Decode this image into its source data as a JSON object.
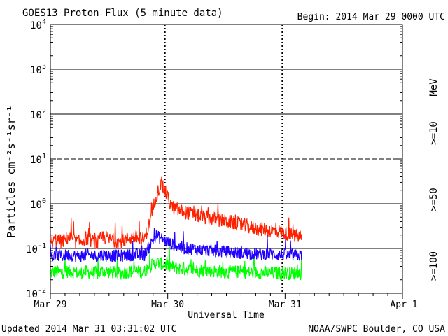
{
  "chart_data": {
    "type": "line",
    "title": "GOES13 Proton Flux (5 minute data)",
    "begin_label": "Begin: 2014 Mar 29 0000 UTC",
    "xlabel": "Universal Time",
    "ylabel": "Particles cm⁻²s⁻¹sr⁻¹",
    "y_scale": "log",
    "ylim": [
      0.01,
      10000
    ],
    "xlim_days": [
      0,
      3
    ],
    "yticks": [
      {
        "value": 0.01,
        "base": "10",
        "exp": "-2"
      },
      {
        "value": 0.1,
        "base": "10",
        "exp": "-1"
      },
      {
        "value": 1,
        "base": "10",
        "exp": "0"
      },
      {
        "value": 10,
        "base": "10",
        "exp": "1"
      },
      {
        "value": 100,
        "base": "10",
        "exp": "2"
      },
      {
        "value": 1000,
        "base": "10",
        "exp": "3"
      },
      {
        "value": 10000,
        "base": "10",
        "exp": "4"
      }
    ],
    "xticks": [
      {
        "day": 0,
        "label": "Mar 29"
      },
      {
        "day": 1,
        "label": "Mar 30"
      },
      {
        "day": 2,
        "label": "Mar 31"
      },
      {
        "day": 3,
        "label": "Apr 1"
      }
    ],
    "threshold_line": {
      "value": 10,
      "style": "dashed"
    },
    "grid_y_lines": [
      0.1,
      1,
      100,
      1000
    ],
    "day_markers": [
      1,
      2
    ],
    "right_label_unit": "MeV",
    "series": [
      {
        "name": ">=10",
        "color": "#ff2000",
        "x": [
          0,
          0.05,
          0.1,
          0.15,
          0.2,
          0.25,
          0.3,
          0.35,
          0.4,
          0.45,
          0.5,
          0.55,
          0.6,
          0.65,
          0.7,
          0.75,
          0.8,
          0.85,
          0.88,
          0.9,
          0.92,
          0.94,
          0.96,
          0.98,
          1.0,
          1.02,
          1.05,
          1.1,
          1.15,
          1.2,
          1.25,
          1.3,
          1.35,
          1.4,
          1.45,
          1.5,
          1.55,
          1.6,
          1.65,
          1.7,
          1.75,
          1.8,
          1.85,
          1.9,
          1.95,
          2.0,
          2.05,
          2.1,
          2.14
        ],
        "values": [
          0.13,
          0.16,
          0.14,
          0.18,
          0.15,
          0.14,
          0.17,
          0.15,
          0.13,
          0.19,
          0.16,
          0.15,
          0.14,
          0.16,
          0.18,
          0.17,
          0.16,
          0.4,
          0.9,
          1.5,
          2.0,
          2.6,
          2.3,
          1.8,
          1.4,
          1.0,
          0.8,
          0.7,
          0.65,
          0.6,
          0.55,
          0.5,
          0.48,
          0.45,
          0.42,
          0.4,
          0.38,
          0.35,
          0.33,
          0.3,
          0.28,
          0.27,
          0.26,
          0.25,
          0.24,
          0.22,
          0.2,
          0.19,
          0.18
        ]
      },
      {
        "name": ">=50",
        "color": "#2000ff",
        "x": [
          0,
          0.05,
          0.1,
          0.15,
          0.2,
          0.25,
          0.3,
          0.35,
          0.4,
          0.45,
          0.5,
          0.55,
          0.6,
          0.65,
          0.7,
          0.75,
          0.8,
          0.85,
          0.88,
          0.9,
          0.92,
          0.94,
          0.96,
          0.98,
          1.0,
          1.02,
          1.05,
          1.1,
          1.15,
          1.2,
          1.25,
          1.3,
          1.35,
          1.4,
          1.45,
          1.5,
          1.55,
          1.6,
          1.65,
          1.7,
          1.75,
          1.8,
          1.85,
          1.9,
          1.95,
          2.0,
          2.05,
          2.1,
          2.14
        ],
        "values": [
          0.065,
          0.07,
          0.068,
          0.072,
          0.07,
          0.066,
          0.071,
          0.07,
          0.068,
          0.073,
          0.07,
          0.069,
          0.068,
          0.07,
          0.072,
          0.071,
          0.07,
          0.12,
          0.16,
          0.2,
          0.18,
          0.17,
          0.16,
          0.15,
          0.14,
          0.13,
          0.12,
          0.11,
          0.1,
          0.1,
          0.095,
          0.09,
          0.09,
          0.088,
          0.085,
          0.085,
          0.082,
          0.08,
          0.08,
          0.078,
          0.076,
          0.075,
          0.075,
          0.074,
          0.072,
          0.072,
          0.07,
          0.07,
          0.07
        ]
      },
      {
        "name": ">=100",
        "color": "#00ff00",
        "x": [
          0,
          0.05,
          0.1,
          0.15,
          0.2,
          0.25,
          0.3,
          0.35,
          0.4,
          0.45,
          0.5,
          0.55,
          0.6,
          0.65,
          0.7,
          0.75,
          0.8,
          0.85,
          0.88,
          0.9,
          0.92,
          0.94,
          0.96,
          0.98,
          1.0,
          1.02,
          1.05,
          1.1,
          1.15,
          1.2,
          1.25,
          1.3,
          1.35,
          1.4,
          1.45,
          1.5,
          1.55,
          1.6,
          1.65,
          1.7,
          1.75,
          1.8,
          1.85,
          1.9,
          1.95,
          2.0,
          2.05,
          2.1,
          2.14
        ],
        "values": [
          0.028,
          0.03,
          0.029,
          0.031,
          0.03,
          0.028,
          0.03,
          0.029,
          0.028,
          0.031,
          0.03,
          0.029,
          0.028,
          0.03,
          0.031,
          0.03,
          0.03,
          0.04,
          0.045,
          0.05,
          0.048,
          0.046,
          0.045,
          0.044,
          0.042,
          0.04,
          0.038,
          0.036,
          0.035,
          0.034,
          0.033,
          0.032,
          0.032,
          0.031,
          0.031,
          0.03,
          0.03,
          0.03,
          0.03,
          0.029,
          0.029,
          0.029,
          0.029,
          0.028,
          0.028,
          0.028,
          0.028,
          0.028,
          0.028
        ]
      }
    ]
  },
  "footer": {
    "updated": "Updated 2014 Mar 31 03:31:02 UTC",
    "source": "NOAA/SWPC Boulder, CO USA"
  }
}
